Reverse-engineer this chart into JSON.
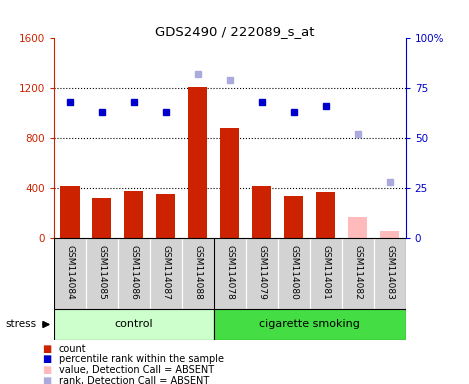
{
  "title": "GDS2490 / 222089_s_at",
  "samples": [
    "GSM114084",
    "GSM114085",
    "GSM114086",
    "GSM114087",
    "GSM114088",
    "GSM114078",
    "GSM114079",
    "GSM114080",
    "GSM114081",
    "GSM114082",
    "GSM114083"
  ],
  "bar_values": [
    420,
    320,
    380,
    350,
    1210,
    880,
    420,
    340,
    370,
    170,
    60
  ],
  "bar_colors": [
    "#cc2200",
    "#cc2200",
    "#cc2200",
    "#cc2200",
    "#cc2200",
    "#cc2200",
    "#cc2200",
    "#cc2200",
    "#cc2200",
    "#ffbbbb",
    "#ffbbbb"
  ],
  "rank_present": [
    68,
    63,
    68,
    63,
    null,
    null,
    68,
    63,
    66,
    null,
    null
  ],
  "rank_absent": [
    null,
    null,
    null,
    null,
    82,
    79,
    null,
    null,
    null,
    52,
    28
  ],
  "rank_present_color": "#0000cc",
  "rank_absent_color": "#aaaadd",
  "ylim_left": [
    0,
    1600
  ],
  "ylim_right": [
    0,
    100
  ],
  "left_ticks": [
    0,
    400,
    800,
    1200,
    1600
  ],
  "right_ticks": [
    0,
    25,
    50,
    75,
    100
  ],
  "grid_lines": [
    400,
    800,
    1200
  ],
  "n_control": 5,
  "n_smoking": 6,
  "control_label": "control",
  "smoking_label": "cigarette smoking",
  "stress_label": "stress",
  "control_color": "#ccffcc",
  "smoking_color": "#44dd44",
  "label_bg_color": "#d3d3d3",
  "legend_items": [
    {
      "label": "count",
      "color": "#cc2200"
    },
    {
      "label": "percentile rank within the sample",
      "color": "#0000cc"
    },
    {
      "label": "value, Detection Call = ABSENT",
      "color": "#ffbbbb"
    },
    {
      "label": "rank, Detection Call = ABSENT",
      "color": "#aaaadd"
    }
  ]
}
